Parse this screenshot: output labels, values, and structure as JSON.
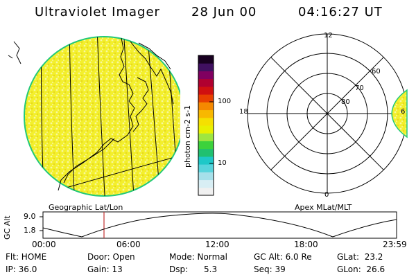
{
  "header": {
    "instrument": "Ultraviolet Imager",
    "date": "28 Jun 00",
    "time": "04:16:27 UT"
  },
  "colorbar": {
    "unit_label": "photon cm-2 s-1",
    "ticks": [
      "100",
      "10"
    ],
    "colors": [
      "#f0f0f0",
      "#d8eef4",
      "#a6e0ea",
      "#58d4dc",
      "#1ec8c8",
      "#20c070",
      "#3cd23c",
      "#9ee640",
      "#e8f000",
      "#f5e000",
      "#f8b800",
      "#f58800",
      "#e84000",
      "#d01010",
      "#b00030",
      "#800060",
      "#401060",
      "#180020"
    ]
  },
  "left_panel": {
    "caption": "Geographic Lat/Lon",
    "fill_color": "#f2ee2a",
    "edge_color": "#22c97a"
  },
  "right_panel": {
    "caption": "Apex MLat/MLT",
    "mlt_labels": {
      "top": "12",
      "left": "18",
      "bottom": "0",
      "right": "6"
    },
    "lat_labels": [
      "60",
      "70",
      "80"
    ]
  },
  "altitude_plot": {
    "ylabel": "GC Alt",
    "yticks": [
      "9.0",
      "1.8"
    ],
    "xticks": [
      "00:00",
      "06:00",
      "12:00",
      "18:00",
      "23:59"
    ],
    "marker_color": "#c03030"
  },
  "info": {
    "flt": "Flt: HOME",
    "ip": "IP: 36.0",
    "door": "Door: Open",
    "gain": "Gain: 13",
    "mode": "Mode: Normal",
    "dsp": "Dsp:      5.3",
    "gc_alt": "GC Alt: 6.0 Re",
    "seq": "Seq: 39",
    "glat": "GLat:  23.2",
    "glon": "GLon:  26.6"
  }
}
